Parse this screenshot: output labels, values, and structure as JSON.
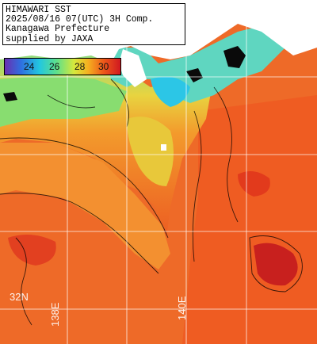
{
  "header": {
    "line1": "HIMAWARI SST",
    "line2": "2025/08/16 07(UTC) 3H Comp.",
    "line3": "Kanagawa Prefecture",
    "line4": "supplied by JAXA"
  },
  "legend": {
    "ticks": [
      "24",
      "26",
      "28",
      "30"
    ],
    "colors": [
      "#6a2fb0",
      "#2f6fe0",
      "#22c7e0",
      "#5fe08a",
      "#d7e83c",
      "#f5b020",
      "#ee5a1a",
      "#d01820"
    ]
  },
  "grid": {
    "lat_label": "32N",
    "lon_labels": [
      "138E",
      "140E"
    ]
  },
  "colors": {
    "land": "#ffffff",
    "no_data": "#0a0a0a",
    "grid_line": "#ffffff",
    "contour": "#000000",
    "warm_sea": "#ef6a2a",
    "cool_sea": "#8fe06a"
  }
}
